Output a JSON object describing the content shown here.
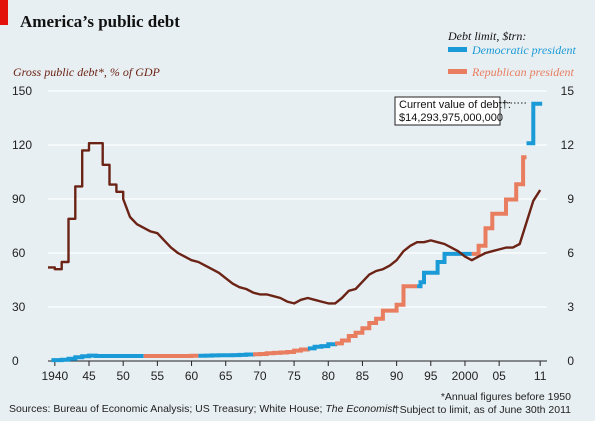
{
  "chart_data": {
    "type": "line",
    "title": "America’s public debt",
    "left_axis": {
      "label": "Gross public debt*, % of GDP",
      "ylim": [
        0,
        150
      ],
      "ticks": [
        0,
        30,
        60,
        90,
        120,
        150
      ],
      "color": "#6b2316"
    },
    "right_axis": {
      "label": "Debt limit, $trn:",
      "ylim": [
        0,
        15
      ],
      "ticks": [
        0,
        3,
        6,
        9,
        12,
        15
      ]
    },
    "x_axis": {
      "xlim": [
        1939,
        2012
      ],
      "ticks": [
        {
          "value": 1940,
          "label": "1940"
        },
        {
          "value": 1945,
          "label": "45"
        },
        {
          "value": 1950,
          "label": "50"
        },
        {
          "value": 1955,
          "label": "55"
        },
        {
          "value": 1960,
          "label": "60"
        },
        {
          "value": 1965,
          "label": "65"
        },
        {
          "value": 1970,
          "label": "70"
        },
        {
          "value": 1975,
          "label": "75"
        },
        {
          "value": 1980,
          "label": "80"
        },
        {
          "value": 1985,
          "label": "85"
        },
        {
          "value": 1990,
          "label": "90"
        },
        {
          "value": 1995,
          "label": "95"
        },
        {
          "value": 2000,
          "label": "2000"
        },
        {
          "value": 2005,
          "label": "05"
        },
        {
          "value": 2011,
          "label": "11"
        }
      ]
    },
    "legend": [
      {
        "name": "Democratic president",
        "color": "#1a9ad6"
      },
      {
        "name": "Republican president",
        "color": "#e97d60"
      }
    ],
    "series": [
      {
        "name": "Gross public debt, % of GDP",
        "axis": "left",
        "color": "#6b2316",
        "points": [
          [
            1939,
            52
          ],
          [
            1940,
            51
          ],
          [
            1941,
            55
          ],
          [
            1942,
            79
          ],
          [
            1943,
            97
          ],
          [
            1944,
            117
          ],
          [
            1945,
            121
          ],
          [
            1946,
            121
          ],
          [
            1947,
            109
          ],
          [
            1948,
            98
          ],
          [
            1949,
            94
          ],
          [
            1950,
            90
          ],
          [
            1951,
            80
          ],
          [
            1952,
            76
          ],
          [
            1953,
            74
          ],
          [
            1954,
            72
          ],
          [
            1955,
            71
          ],
          [
            1956,
            67
          ],
          [
            1957,
            63
          ],
          [
            1958,
            60
          ],
          [
            1959,
            58
          ],
          [
            1960,
            56
          ],
          [
            1961,
            55
          ],
          [
            1962,
            53
          ],
          [
            1963,
            51
          ],
          [
            1964,
            49
          ],
          [
            1965,
            46
          ],
          [
            1966,
            43
          ],
          [
            1967,
            41
          ],
          [
            1968,
            40
          ],
          [
            1969,
            38
          ],
          [
            1970,
            37
          ],
          [
            1971,
            37
          ],
          [
            1972,
            36
          ],
          [
            1973,
            35
          ],
          [
            1974,
            33
          ],
          [
            1975,
            32
          ],
          [
            1976,
            34
          ],
          [
            1977,
            35
          ],
          [
            1978,
            34
          ],
          [
            1979,
            33
          ],
          [
            1980,
            32
          ],
          [
            1981,
            32
          ],
          [
            1982,
            35
          ],
          [
            1983,
            39
          ],
          [
            1984,
            40
          ],
          [
            1985,
            44
          ],
          [
            1986,
            48
          ],
          [
            1987,
            50
          ],
          [
            1988,
            51
          ],
          [
            1989,
            53
          ],
          [
            1990,
            56
          ],
          [
            1991,
            61
          ],
          [
            1992,
            64
          ],
          [
            1993,
            66
          ],
          [
            1994,
            66
          ],
          [
            1995,
            67
          ],
          [
            1996,
            66
          ],
          [
            1997,
            65
          ],
          [
            1998,
            63
          ],
          [
            1999,
            61
          ],
          [
            2000,
            58
          ],
          [
            2001,
            56
          ],
          [
            2002,
            58
          ],
          [
            2003,
            60
          ],
          [
            2004,
            61
          ],
          [
            2005,
            62
          ],
          [
            2006,
            63
          ],
          [
            2007,
            63
          ],
          [
            2008,
            65
          ],
          [
            2009,
            77
          ],
          [
            2010,
            89
          ],
          [
            2011,
            95
          ]
        ]
      },
      {
        "name": "Debt limit, $trn",
        "axis": "right",
        "shape": "step",
        "segments": [
          {
            "party": "Democratic president",
            "points": [
              [
                1939.5,
                0.05
              ],
              [
                1941,
                0.07
              ],
              [
                1942,
                0.13
              ],
              [
                1943,
                0.21
              ],
              [
                1944,
                0.26
              ],
              [
                1945,
                0.3
              ],
              [
                1946,
                0.28
              ],
              [
                1953,
                0.28
              ]
            ]
          },
          {
            "party": "Republican president",
            "points": [
              [
                1953,
                0.28
              ],
              [
                1954,
                0.28
              ],
              [
                1956,
                0.28
              ],
              [
                1958,
                0.28
              ],
              [
                1960,
                0.29
              ],
              [
                1961,
                0.29
              ]
            ]
          },
          {
            "party": "Democratic president",
            "points": [
              [
                1961,
                0.29
              ],
              [
                1962,
                0.3
              ],
              [
                1963,
                0.31
              ],
              [
                1964,
                0.32
              ],
              [
                1966,
                0.33
              ],
              [
                1967,
                0.34
              ],
              [
                1968,
                0.36
              ],
              [
                1969,
                0.37
              ]
            ]
          },
          {
            "party": "Republican president",
            "points": [
              [
                1969,
                0.37
              ],
              [
                1970,
                0.39
              ],
              [
                1971,
                0.43
              ],
              [
                1972,
                0.45
              ],
              [
                1973,
                0.47
              ],
              [
                1974,
                0.5
              ],
              [
                1975,
                0.58
              ],
              [
                1976,
                0.64
              ],
              [
                1977,
                0.7
              ]
            ]
          },
          {
            "party": "Democratic president",
            "points": [
              [
                1977,
                0.7
              ],
              [
                1978,
                0.79
              ],
              [
                1979,
                0.83
              ],
              [
                1980,
                0.93
              ],
              [
                1981,
                0.98
              ]
            ]
          },
          {
            "party": "Republican president",
            "points": [
              [
                1981,
                0.98
              ],
              [
                1982,
                1.14
              ],
              [
                1983,
                1.39
              ],
              [
                1984,
                1.57
              ],
              [
                1985,
                1.82
              ],
              [
                1986,
                2.11
              ],
              [
                1987,
                2.35
              ],
              [
                1988,
                2.8
              ],
              [
                1990,
                3.12
              ],
              [
                1991,
                4.15
              ],
              [
                1993,
                4.15
              ]
            ]
          },
          {
            "party": "Democratic president",
            "points": [
              [
                1993,
                4.15
              ],
              [
                1993.5,
                4.37
              ],
              [
                1994,
                4.9
              ],
              [
                1996,
                5.5
              ],
              [
                1997,
                5.95
              ],
              [
                2001,
                5.95
              ]
            ]
          },
          {
            "party": "Republican president",
            "points": [
              [
                2001,
                5.95
              ],
              [
                2002,
                6.4
              ],
              [
                2003,
                7.38
              ],
              [
                2004,
                8.18
              ],
              [
                2006,
                8.97
              ],
              [
                2007.5,
                9.82
              ],
              [
                2008.5,
                11.32
              ],
              [
                2009,
                11.32
              ]
            ]
          },
          {
            "party": "Democratic president",
            "points": [
              [
                2009,
                12.1
              ],
              [
                2010,
                14.29
              ],
              [
                2011.3,
                14.29
              ]
            ]
          }
        ]
      }
    ],
    "annotation": {
      "label": "Current value of debt†:",
      "value": "$14,293,975,000,000"
    },
    "footnotes": {
      "sources_prefix": "Sources: Bureau of Economic Analysis; US Treasury; White House; ",
      "sources_italic": "The Economist",
      "note1": "*Annual figures before 1950",
      "note2": "†Subject to limit, as of June 30th 2011"
    }
  }
}
